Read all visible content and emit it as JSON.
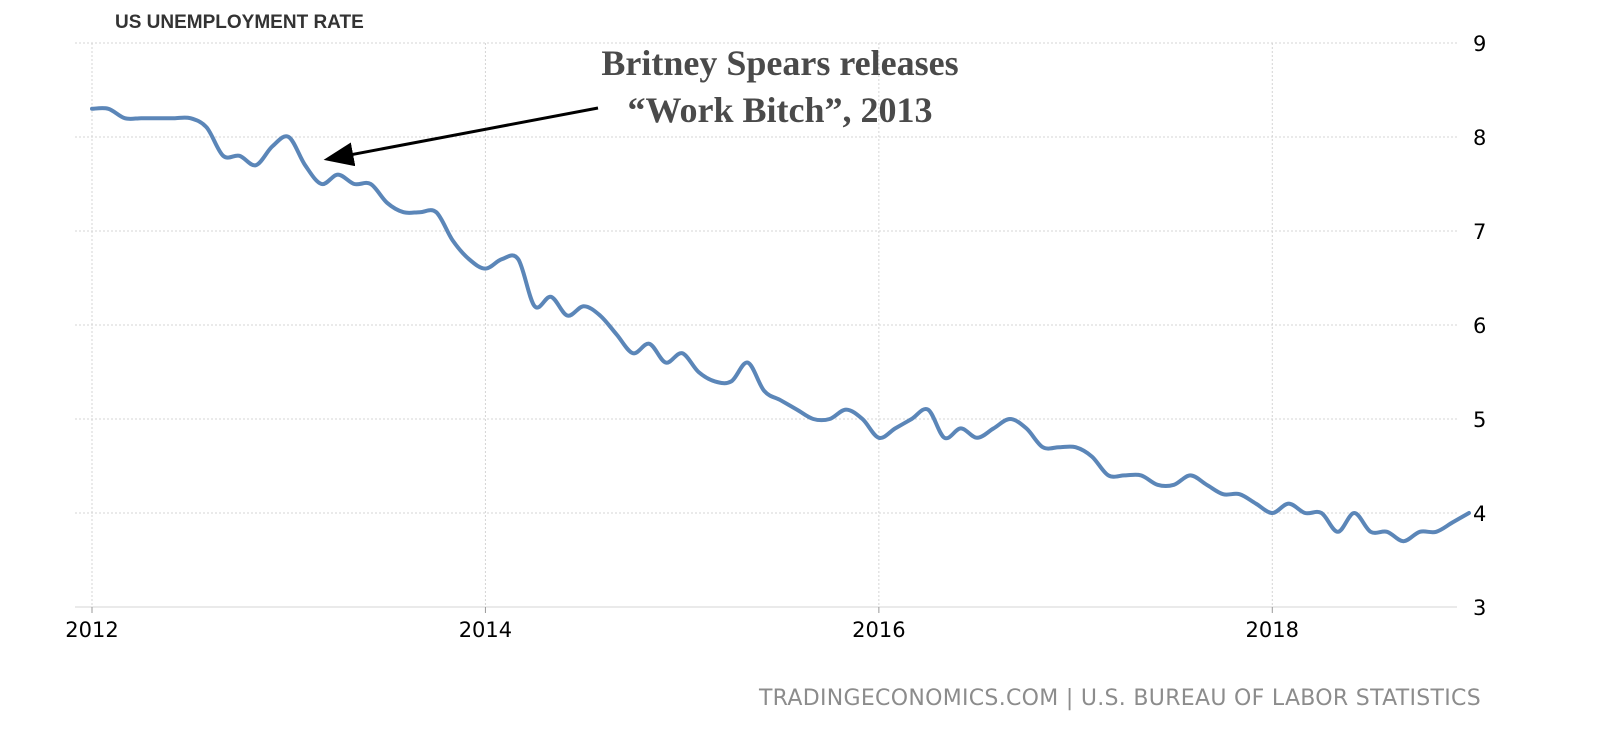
{
  "chart_data": {
    "type": "line",
    "title": "US UNEMPLOYMENT RATE",
    "xlabel": "",
    "ylabel": "",
    "x_ticks": [
      "2012",
      "2014",
      "2016",
      "2018"
    ],
    "y_ticks": [
      "3",
      "4",
      "5",
      "6",
      "7",
      "8",
      "9"
    ],
    "xlim": [
      "2012-01",
      "2019-01"
    ],
    "ylim": [
      3,
      9
    ],
    "grid": true,
    "colors": {
      "line": "#5b86b8",
      "grid": "#d4d4d4",
      "arrow": "#000000"
    },
    "series": [
      {
        "x": [
          "2012-01",
          "2012-02",
          "2012-03",
          "2012-04",
          "2012-05",
          "2012-06",
          "2012-07",
          "2012-08",
          "2012-09",
          "2012-10",
          "2012-11",
          "2012-12",
          "2013-01",
          "2013-02",
          "2013-03",
          "2013-04",
          "2013-05",
          "2013-06",
          "2013-07",
          "2013-08",
          "2013-09",
          "2013-10",
          "2013-11",
          "2013-12",
          "2014-01",
          "2014-02",
          "2014-03",
          "2014-04",
          "2014-05",
          "2014-06",
          "2014-07",
          "2014-08",
          "2014-09",
          "2014-10",
          "2014-11",
          "2014-12",
          "2015-01",
          "2015-02",
          "2015-03",
          "2015-04",
          "2015-05",
          "2015-06",
          "2015-07",
          "2015-08",
          "2015-09",
          "2015-10",
          "2015-11",
          "2015-12",
          "2016-01",
          "2016-02",
          "2016-03",
          "2016-04",
          "2016-05",
          "2016-06",
          "2016-07",
          "2016-08",
          "2016-09",
          "2016-10",
          "2016-11",
          "2016-12",
          "2017-01",
          "2017-02",
          "2017-03",
          "2017-04",
          "2017-05",
          "2017-06",
          "2017-07",
          "2017-08",
          "2017-09",
          "2017-10",
          "2017-11",
          "2017-12",
          "2018-01",
          "2018-02",
          "2018-03",
          "2018-04",
          "2018-05",
          "2018-06",
          "2018-07",
          "2018-08",
          "2018-09",
          "2018-10",
          "2018-11",
          "2018-12",
          "2019-01"
        ],
        "values": [
          8.3,
          8.3,
          8.2,
          8.2,
          8.2,
          8.2,
          8.2,
          8.1,
          7.8,
          7.8,
          7.7,
          7.9,
          8.0,
          7.7,
          7.5,
          7.6,
          7.5,
          7.5,
          7.3,
          7.2,
          7.2,
          7.2,
          6.9,
          6.7,
          6.6,
          6.7,
          6.7,
          6.2,
          6.3,
          6.1,
          6.2,
          6.1,
          5.9,
          5.7,
          5.8,
          5.6,
          5.7,
          5.5,
          5.4,
          5.4,
          5.6,
          5.3,
          5.2,
          5.1,
          5.0,
          5.0,
          5.1,
          5.0,
          4.8,
          4.9,
          5.0,
          5.1,
          4.8,
          4.9,
          4.8,
          4.9,
          5.0,
          4.9,
          4.7,
          4.7,
          4.7,
          4.6,
          4.4,
          4.4,
          4.4,
          4.3,
          4.3,
          4.4,
          4.3,
          4.2,
          4.2,
          4.1,
          4.0,
          4.1,
          4.0,
          4.0,
          3.8,
          4.0,
          3.8,
          3.8,
          3.7,
          3.8,
          3.8,
          3.9,
          4.0
        ]
      }
    ],
    "annotations": {
      "line1": "Britney Spears releases",
      "line2": "“Work Bitch”, 2013",
      "target_x": "2013-03",
      "target_y": 7.8
    },
    "source": "TRADINGECONOMICS.COM | U.S. BUREAU OF LABOR STATISTICS"
  }
}
